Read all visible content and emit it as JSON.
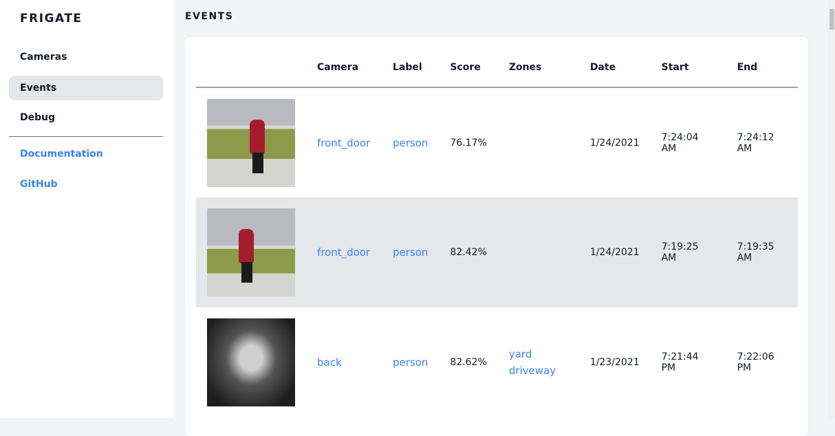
{
  "sidebar": {
    "brand": "FRIGATE",
    "items": [
      {
        "label": "Cameras",
        "active": false
      },
      {
        "label": "Events",
        "active": true
      },
      {
        "label": "Debug",
        "active": false
      }
    ],
    "links": [
      {
        "label": "Documentation"
      },
      {
        "label": "GitHub"
      }
    ]
  },
  "main": {
    "title": "EVENTS",
    "columns": [
      "",
      "Camera",
      "Label",
      "Score",
      "Zones",
      "Date",
      "Start",
      "End"
    ],
    "rows": [
      {
        "camera": "front_door",
        "label": "person",
        "score": "76.17%",
        "zones": [
          "",
          ""
        ],
        "date": "1/24/2021",
        "start": "7:24:04 AM",
        "end": "7:24:12 AM"
      },
      {
        "camera": "front_door",
        "label": "person",
        "score": "82.42%",
        "zones": [
          "",
          ""
        ],
        "date": "1/24/2021",
        "start": "7:19:25 AM",
        "end": "7:19:35 AM"
      },
      {
        "camera": "back",
        "label": "person",
        "score": "82.62%",
        "zones": [
          "yard",
          "driveway"
        ],
        "date": "1/23/2021",
        "start": "7:21:44 PM",
        "end": "7:22:06 PM"
      }
    ]
  },
  "colors": {
    "accent": "#3b82f6",
    "active_bg": "#e5e7eb",
    "page_bg": "#f3f4f6"
  }
}
